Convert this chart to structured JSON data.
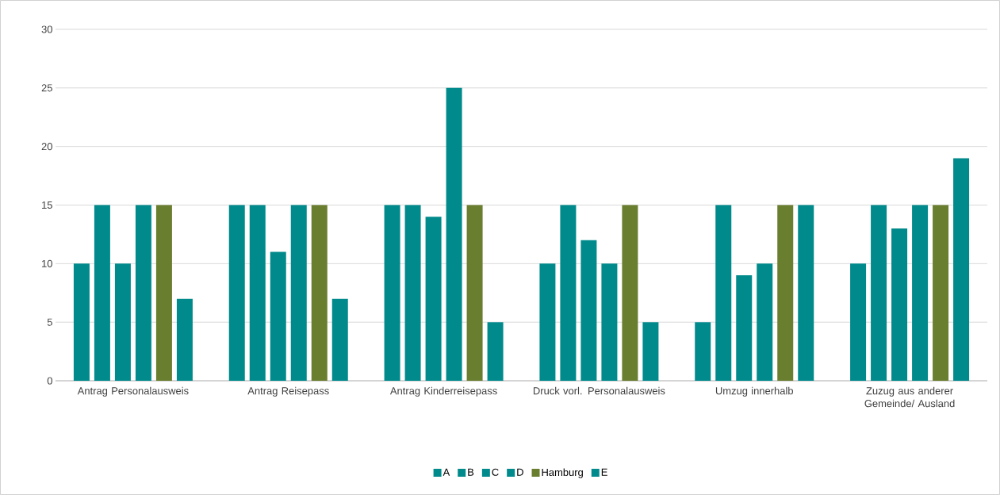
{
  "chart_data": {
    "type": "bar",
    "categories": [
      "Antrag Personalausweis",
      "Antrag Reisepass",
      "Antrag Kinderreisepass",
      "Druck vorl. Personalausweis",
      "Umzug innerhalb",
      "Zuzug aus anderer Gemeinde/ Ausland"
    ],
    "series": [
      {
        "name": "A",
        "color": "#008a8c",
        "values": [
          10,
          15,
          15,
          10,
          5,
          10
        ]
      },
      {
        "name": "B",
        "color": "#008a8c",
        "values": [
          15,
          15,
          15,
          15,
          15,
          15
        ]
      },
      {
        "name": "C",
        "color": "#008a8c",
        "values": [
          10,
          11,
          14,
          12,
          9,
          13
        ]
      },
      {
        "name": "D",
        "color": "#008a8c",
        "values": [
          15,
          15,
          25,
          10,
          10,
          15
        ]
      },
      {
        "name": "Hamburg",
        "color": "#6a7e2f",
        "values": [
          15,
          15,
          15,
          15,
          15,
          15
        ]
      },
      {
        "name": "E",
        "color": "#008a8c",
        "values": [
          7,
          7,
          5,
          5,
          15,
          19
        ]
      }
    ],
    "ylim": [
      0,
      30
    ],
    "yticks": [
      0,
      5,
      10,
      15,
      20,
      25,
      30
    ],
    "grid": "y",
    "legend": "bottom"
  }
}
